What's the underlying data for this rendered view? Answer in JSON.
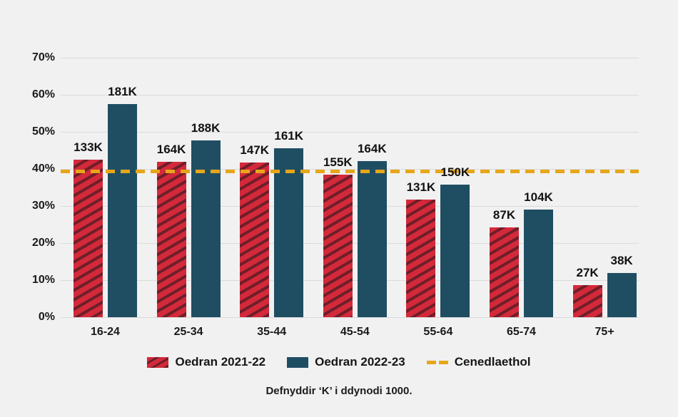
{
  "chart_data": {
    "type": "bar",
    "title": "",
    "categories": [
      "16-24",
      "25-34",
      "35-44",
      "45-54",
      "55-64",
      "65-74",
      "75+"
    ],
    "series": [
      {
        "name": "Oedran 2021-22",
        "swatch": "red-hatched",
        "labels": [
          "133K",
          "164K",
          "147K",
          "155K",
          "131K",
          "87K",
          "27K"
        ],
        "values_pct": [
          42.5,
          42.0,
          41.8,
          38.5,
          31.7,
          24.3,
          8.7
        ]
      },
      {
        "name": "Oedran 2022-23",
        "swatch": "teal-solid",
        "labels": [
          "181K",
          "188K",
          "161K",
          "164K",
          "150K",
          "104K",
          "38K"
        ],
        "values_pct": [
          57.5,
          47.6,
          45.6,
          42.2,
          35.7,
          29.0,
          11.9
        ]
      }
    ],
    "reference_line": {
      "label": "Cenedlaethol",
      "value_pct": 39.4,
      "style": "dashed"
    },
    "ylim": [
      0,
      70
    ],
    "yticks": [
      0,
      10,
      20,
      30,
      40,
      50,
      60,
      70
    ],
    "ytick_suffix": "%",
    "xlabel": "",
    "ylabel": "",
    "grid": "horizontal",
    "legend_position": "bottom"
  },
  "note": "Defnyddir ‘K’ i ddynodi 1000.",
  "colors": {
    "background": "#F1F1F2",
    "bar_2021_22": "#D3293A",
    "bar_2021_22_stripe": "#6E1E29",
    "bar_2022_23": "#1F4E63",
    "reference_line": "#E7A61A",
    "gridline": "#DBDBDB",
    "text": "#1A1A1A"
  }
}
